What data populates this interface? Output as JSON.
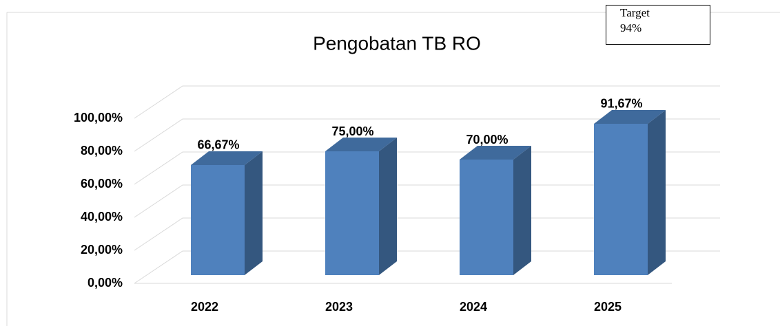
{
  "chart_data": {
    "type": "bar3d",
    "title": "Pengobatan TB RO",
    "categories": [
      "2022",
      "2023",
      "2024",
      "2025"
    ],
    "values": [
      66.67,
      75.0,
      70.0,
      91.67
    ],
    "value_labels": [
      "66,67%",
      "75,00%",
      "70,00%",
      "91,67%"
    ],
    "color": "#4f81bd",
    "ylim": [
      0,
      100
    ],
    "yticks": [
      {
        "value": 0,
        "label": "0,00%"
      },
      {
        "value": 20,
        "label": "20,00%"
      },
      {
        "value": 40,
        "label": "40,00%"
      },
      {
        "value": 60,
        "label": "60,00%"
      },
      {
        "value": 80,
        "label": "80,00%"
      },
      {
        "value": 100,
        "label": "100,00%"
      }
    ],
    "grid": true
  },
  "target": {
    "label": "Target",
    "value": "94%"
  }
}
